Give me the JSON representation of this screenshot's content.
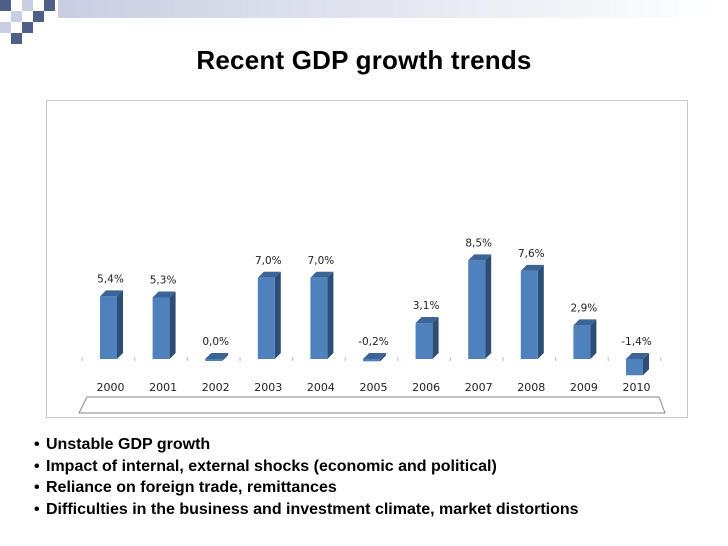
{
  "slide": {
    "title": "Recent GDP growth trends",
    "colors": {
      "accent_dark": "#4e5f88",
      "accent_light": "#c9cfe2",
      "bar_front": "#4f81bd",
      "bar_side": "#2c4d75",
      "bar_top": "#3d6496"
    }
  },
  "chart_data": {
    "type": "bar",
    "title": "",
    "xlabel": "",
    "ylabel": "",
    "categories": [
      "2000",
      "2001",
      "2002",
      "2003",
      "2004",
      "2005",
      "2006",
      "2007",
      "2008",
      "2009",
      "2010"
    ],
    "values": [
      5.4,
      5.3,
      0.0,
      7.0,
      7.0,
      -0.2,
      3.1,
      8.5,
      7.6,
      2.9,
      -1.4
    ],
    "data_labels": [
      "5,4%",
      "5,3%",
      "0,0%",
      "7,0%",
      "7,0%",
      "-0,2%",
      "3,1%",
      "8,5%",
      "7,6%",
      "2,9%",
      "-1,4%"
    ],
    "ylim": [
      -1.4,
      8.5
    ],
    "grid": false,
    "style": "3d-column"
  },
  "bullets": [
    "Unstable GDP growth",
    "Impact of internal, external shocks (economic and political)",
    "Reliance on foreign trade, remittances",
    "Difficulties in the business and investment climate, market distortions"
  ],
  "bullet_marker": "•"
}
